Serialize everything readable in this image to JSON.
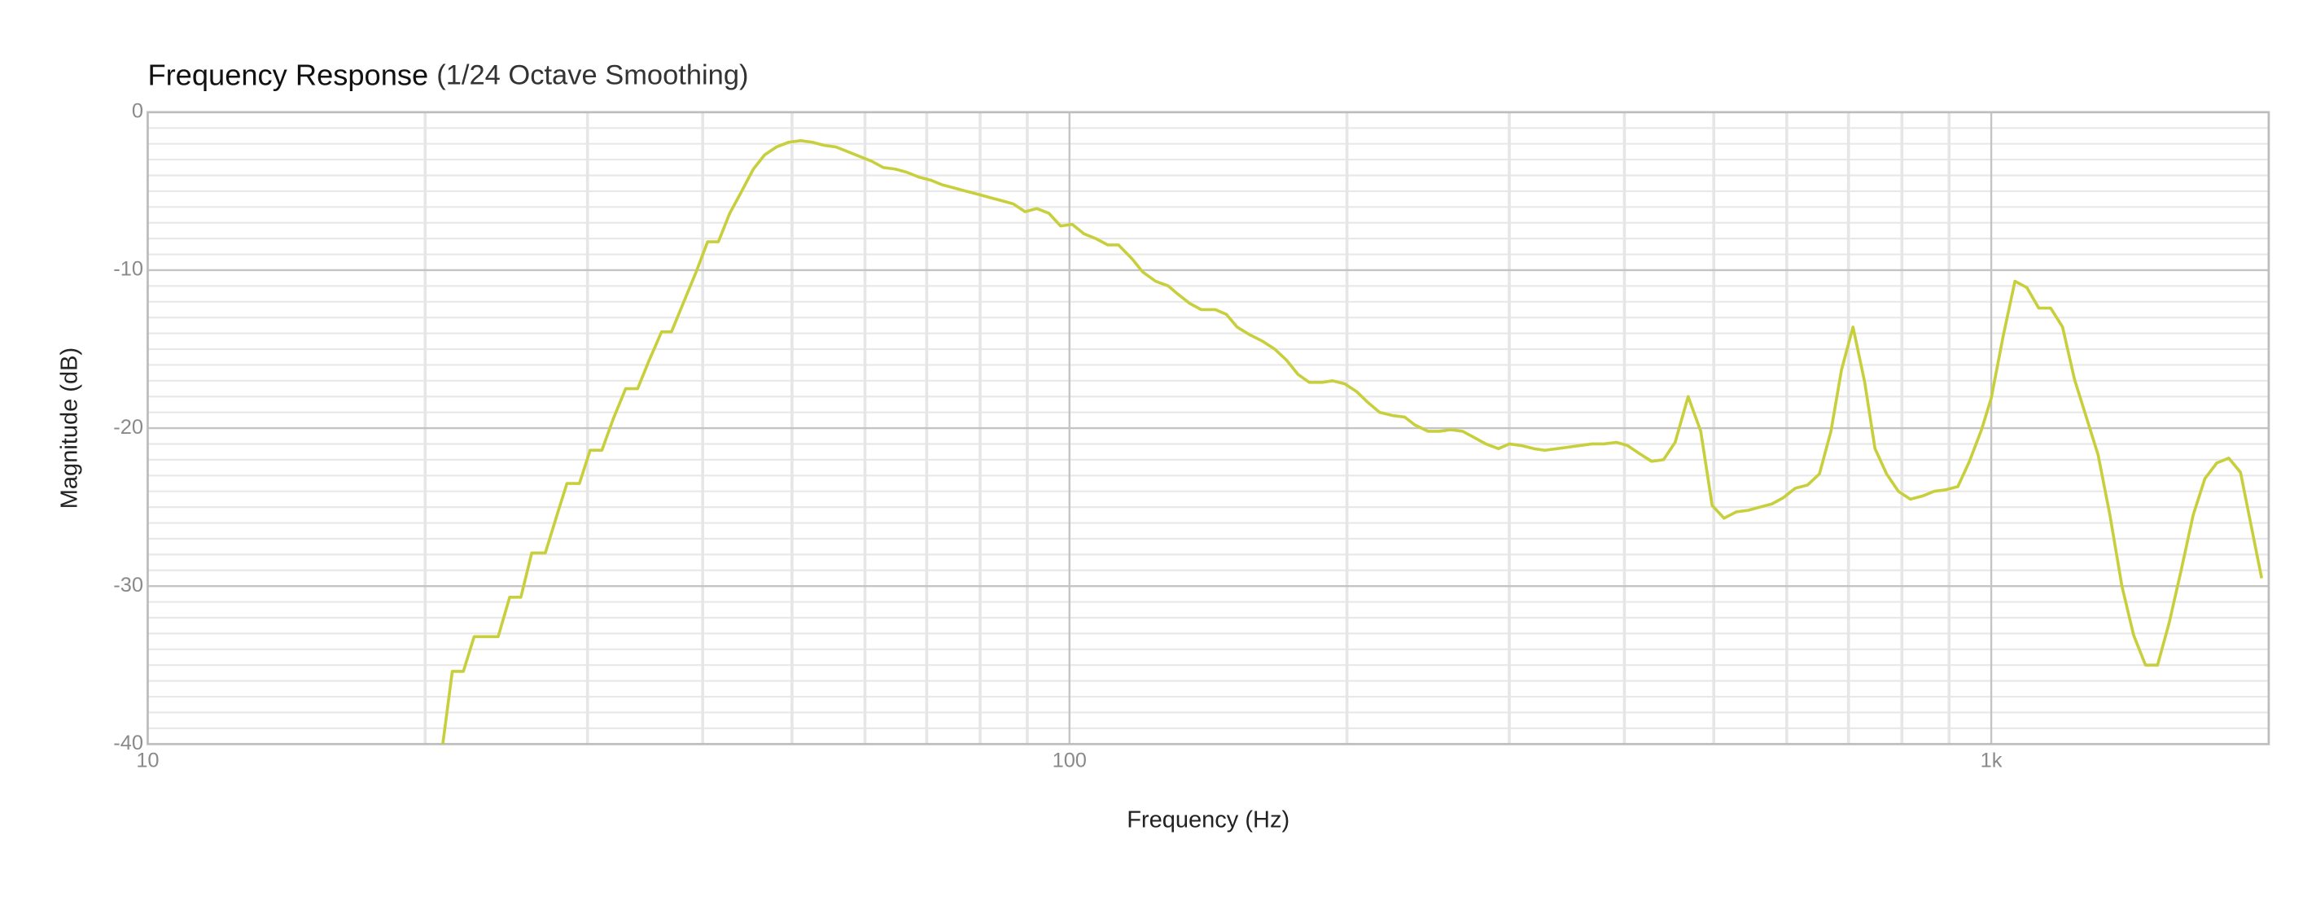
{
  "chart_data": {
    "type": "line",
    "title": "Frequency Response",
    "subtitle": "(1/24 Octave Smoothing)",
    "xlabel": "Frequency (Hz)",
    "ylabel": "Magnitude (dB)",
    "xscale": "log",
    "xlim": [
      10,
      2000
    ],
    "ylim": [
      -40,
      0
    ],
    "xticks": [
      10,
      100,
      {
        "value": 1000,
        "label": "1k"
      }
    ],
    "yticks": [
      0,
      -10,
      -20,
      -30,
      -40
    ],
    "xminor": [
      20,
      30,
      40,
      50,
      60,
      70,
      80,
      90,
      200,
      300,
      400,
      500,
      600,
      700,
      800,
      900
    ],
    "yminor": [
      -1,
      -2,
      -3,
      -4,
      -5,
      -6,
      -7,
      -8,
      -9,
      -11,
      -12,
      -13,
      -14,
      -15,
      -16,
      -17,
      -18,
      -19,
      -21,
      -22,
      -23,
      -24,
      -25,
      -26,
      -27,
      -28,
      -29,
      -31,
      -32,
      -33,
      -34,
      -35,
      -36,
      -37,
      -38,
      -39
    ],
    "grid": true,
    "series": [
      {
        "name": "Magnitude",
        "color": "#c8cf3c",
        "x": [
          20.9,
          21.4,
          22.0,
          22.6,
          24.0,
          24.7,
          25.4,
          26.1,
          27.0,
          27.8,
          28.5,
          29.4,
          30.2,
          31.1,
          32.0,
          33.0,
          34.0,
          35.0,
          36.1,
          37.0,
          38.1,
          39.3,
          40.5,
          41.6,
          42.8,
          44.1,
          45.4,
          46.7,
          48.1,
          49.6,
          51.1,
          52.6,
          54.2,
          55.8,
          57.5,
          59.2,
          61.0,
          62.8,
          64.7,
          66.6,
          68.6,
          70.7,
          72.8,
          75.0,
          77.2,
          79.6,
          81.9,
          84.4,
          86.9,
          89.5,
          92.2,
          95.0,
          97.8,
          100.7,
          103.7,
          106.8,
          110,
          113,
          117,
          120,
          124,
          128,
          131,
          135,
          139,
          144,
          148,
          152,
          157,
          162,
          167,
          172,
          177,
          182,
          188,
          193,
          199,
          205,
          211,
          217,
          224,
          231,
          237,
          245,
          252,
          259,
          267,
          275,
          283,
          292,
          300,
          309,
          319,
          328,
          338,
          348,
          358,
          369,
          380,
          392,
          403,
          415,
          428,
          441,
          454,
          469,
          484,
          498,
          513,
          529,
          545,
          561,
          578,
          595,
          613,
          632,
          651,
          670,
          688,
          708,
          729,
          748,
          770,
          793,
          817,
          842,
          867,
          893,
          920,
          947,
          976,
          1000,
          1030,
          1061,
          1093,
          1126,
          1160,
          1195,
          1231,
          1268,
          1306,
          1345,
          1386,
          1427,
          1470,
          1515,
          1560,
          1607,
          1656,
          1705,
          1757,
          1810,
          1864,
          1907,
          1965
        ],
        "values": [
          -40,
          -35.4,
          -35.4,
          -33.2,
          -33.2,
          -30.7,
          -30.7,
          -27.9,
          -27.9,
          -25.5,
          -23.5,
          -23.5,
          -21.4,
          -21.4,
          -19.4,
          -17.5,
          -17.5,
          -15.7,
          -13.9,
          -13.9,
          -12.1,
          -10.2,
          -8.2,
          -8.2,
          -6.4,
          -5.0,
          -3.6,
          -2.7,
          -2.2,
          -1.9,
          -1.8,
          -1.9,
          -2.1,
          -2.2,
          -2.5,
          -2.8,
          -3.1,
          -3.5,
          -3.6,
          -3.8,
          -4.1,
          -4.3,
          -4.6,
          -4.8,
          -5.0,
          -5.2,
          -5.4,
          -5.6,
          -5.8,
          -6.3,
          -6.1,
          -6.4,
          -7.2,
          -7.1,
          -7.7,
          -8.0,
          -8.4,
          -8.4,
          -9.3,
          -10.1,
          -10.7,
          -11.0,
          -11.5,
          -12.1,
          -12.5,
          -12.5,
          -12.8,
          -13.6,
          -14.1,
          -14.5,
          -15.0,
          -15.7,
          -16.6,
          -17.1,
          -17.1,
          -17.0,
          -17.2,
          -17.7,
          -18.4,
          -19.0,
          -19.2,
          -19.3,
          -19.8,
          -20.2,
          -20.2,
          -20.1,
          -20.2,
          -20.6,
          -21.0,
          -21.3,
          -21.0,
          -21.1,
          -21.3,
          -21.4,
          -21.3,
          -21.2,
          -21.1,
          -21.0,
          -21.0,
          -20.9,
          -21.1,
          -21.6,
          -22.1,
          -22.0,
          -20.9,
          -18.0,
          -20.2,
          -24.9,
          -25.7,
          -25.3,
          -25.2,
          -25.0,
          -24.8,
          -24.4,
          -23.8,
          -23.6,
          -22.9,
          -20.2,
          -16.3,
          -13.6,
          -17.1,
          -21.3,
          -22.9,
          -24.0,
          -24.5,
          -24.3,
          -24.0,
          -23.9,
          -23.7,
          -22.1,
          -20.1,
          -18.1,
          -14.2,
          -10.7,
          -11.1,
          -12.4,
          -12.4,
          -13.6,
          -16.9,
          -19.3,
          -21.7,
          -25.5,
          -30.0,
          -33.1,
          -35.0,
          -35.0,
          -32.3,
          -29.0,
          -25.5,
          -23.2,
          -22.2,
          -21.9,
          -22.8,
          -25.7,
          -29.5
        ]
      }
    ]
  }
}
